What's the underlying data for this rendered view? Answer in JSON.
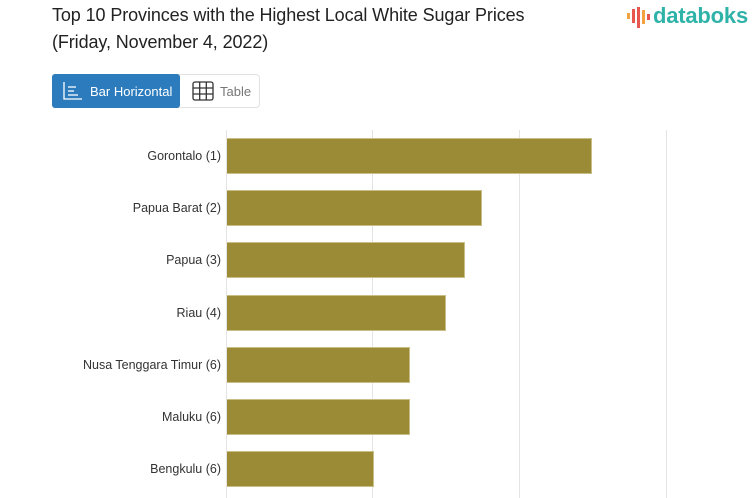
{
  "header": {
    "title_line1": "Top 10 Provinces with the Highest Local White Sugar Prices",
    "title_line2": "(Friday, November 4, 2022)",
    "logo_text": "databoks",
    "logo_colors": {
      "bars": [
        "#f4a340",
        "#e8574f",
        "#e8574f",
        "#f4a340",
        "#e8574f"
      ],
      "text": "#2fb3a8"
    }
  },
  "view_toggle": {
    "options": [
      {
        "label": "Bar Horizontal",
        "icon": "bar-horizontal-icon",
        "active": true
      },
      {
        "label": "Table",
        "icon": "table-grid-icon",
        "active": false
      }
    ],
    "active_color": "#2b7bbd"
  },
  "colors": {
    "bar": "#9b8a36",
    "gridline": "#e4e4e4"
  },
  "chart_data": {
    "type": "bar",
    "orientation": "horizontal",
    "title": "Top 10 Provinces with the Highest Local White Sugar Prices (Friday, November 4, 2022)",
    "xlabel": "",
    "ylabel": "",
    "x_axis_tick_labels_visible": false,
    "value_units": "gridline units (axis ticks not visible; gridlines at 0, 1, 2, 3)",
    "xlim": [
      0,
      3
    ],
    "grid": true,
    "legend": null,
    "categories": [
      "Gorontalo (1)",
      "Papua Barat (2)",
      "Papua (3)",
      "Riau (4)",
      "Nusa Tenggara Timur (6)",
      "Maluku (6)",
      "Bengkulu (6)"
    ],
    "values": [
      2.49,
      1.74,
      1.62,
      1.49,
      1.25,
      1.25,
      1.0
    ]
  }
}
